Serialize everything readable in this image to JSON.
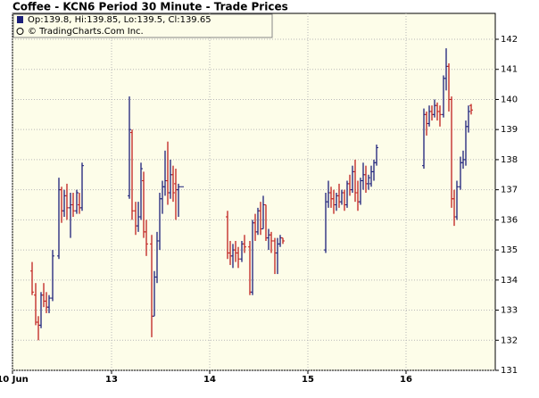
{
  "chart_data": {
    "type": "ohlc",
    "title": "Coffee - KCN6 Period 30 Minute - Trade Prices",
    "legend_text": "Op:139.8, Hi:139.85, Lo:139.5, Cl:139.65",
    "copyright": "© TradingCharts.Com Inc.",
    "up_color": "#1b1f7a",
    "down_color": "#c0201e",
    "x": [
      4.4,
      5.2,
      5.8,
      6.4,
      7.0,
      7.6,
      8.2,
      9.0,
      10.4,
      11.0,
      11.6,
      12.2,
      13.0,
      13.6,
      14.4,
      15.0,
      15.6,
      26.2,
      26.8,
      27.6,
      28.2,
      28.8,
      29.4,
      30.0,
      31.2,
      31.8,
      32.4,
      33.0,
      33.6,
      34.2,
      34.8,
      35.4,
      36.0,
      36.6,
      37.2,
      38.0,
      48.2,
      48.8,
      49.4,
      50.0,
      50.6,
      51.4,
      52.0,
      53.2,
      53.8,
      54.4,
      55.0,
      55.6,
      56.2,
      56.8,
      57.4,
      58.0,
      58.8,
      59.4,
      60.0,
      60.6,
      70.2,
      70.8,
      71.4,
      72.0,
      72.6,
      73.2,
      73.8,
      74.4,
      75.0,
      75.6,
      76.2,
      76.8,
      77.4,
      78.0,
      78.6,
      79.2,
      79.8,
      80.4,
      81.0,
      81.6,
      92.2,
      92.8,
      93.4,
      94.0,
      94.6,
      95.2,
      95.8,
      96.6,
      97.2,
      97.8,
      98.4,
      99.0,
      99.6,
      100.4,
      101.0,
      101.6,
      102.2,
      102.8
    ],
    "open": [
      134.3,
      133.5,
      132.6,
      132.5,
      133.5,
      133.3,
      133.1,
      133.4,
      134.8,
      137.0,
      136.3,
      136.8,
      136.4,
      136.5,
      136.3,
      136.5,
      136.4,
      136.8,
      138.9,
      136.3,
      135.8,
      136.1,
      137.3,
      135.6,
      135.2,
      132.8,
      134.1,
      135.3,
      136.7,
      137.1,
      137.3,
      136.9,
      137.5,
      137.2,
      137.0,
      137.1,
      136.1,
      134.9,
      134.8,
      135.0,
      134.9,
      134.7,
      135.2,
      135.1,
      133.6,
      135.9,
      135.6,
      136.3,
      135.7,
      136.5,
      135.4,
      135.5,
      135.3,
      134.9,
      135.2,
      135.4,
      135.0,
      136.6,
      136.9,
      136.7,
      136.5,
      136.8,
      136.6,
      136.9,
      136.5,
      137.2,
      137.0,
      137.6,
      136.9,
      136.6,
      137.3,
      137.5,
      137.2,
      137.2,
      137.6,
      137.9,
      137.8,
      139.5,
      139.2,
      139.6,
      139.5,
      139.8,
      139.6,
      139.5,
      140.7,
      141.1,
      140.0,
      136.7,
      136.1,
      137.1,
      137.9,
      138.0,
      139.1,
      139.8
    ],
    "high": [
      134.6,
      133.9,
      132.8,
      133.6,
      133.9,
      133.6,
      133.5,
      135.0,
      137.4,
      137.1,
      137.0,
      137.2,
      136.9,
      136.9,
      137.0,
      136.9,
      137.9,
      140.1,
      139.0,
      136.6,
      136.6,
      137.9,
      137.6,
      136.0,
      135.5,
      134.3,
      135.6,
      136.9,
      137.3,
      138.3,
      138.6,
      138.0,
      137.8,
      137.7,
      137.2,
      137.1,
      136.3,
      135.3,
      135.2,
      135.3,
      135.1,
      135.3,
      135.5,
      135.3,
      136.0,
      136.2,
      136.4,
      136.6,
      136.8,
      136.5,
      135.7,
      135.6,
      135.4,
      135.4,
      135.5,
      135.4,
      136.9,
      137.3,
      137.1,
      137.0,
      136.9,
      137.2,
      137.0,
      137.0,
      137.3,
      137.5,
      137.8,
      138.0,
      137.3,
      137.4,
      137.9,
      137.8,
      137.5,
      137.8,
      138.0,
      138.5,
      139.7,
      139.6,
      139.8,
      139.8,
      140.0,
      139.9,
      139.8,
      140.8,
      141.7,
      141.2,
      140.1,
      137.0,
      137.3,
      138.1,
      138.3,
      139.3,
      139.8,
      139.85
    ],
    "low": [
      133.5,
      132.5,
      132.0,
      132.4,
      133.1,
      132.9,
      132.9,
      133.3,
      134.7,
      135.9,
      136.1,
      136.0,
      135.4,
      136.1,
      136.2,
      136.2,
      136.3,
      136.7,
      136.0,
      135.5,
      135.6,
      136.0,
      135.4,
      134.8,
      132.1,
      132.8,
      133.9,
      135.0,
      136.2,
      136.8,
      136.5,
      136.7,
      136.6,
      136.0,
      136.1,
      137.1,
      134.7,
      134.5,
      134.4,
      134.6,
      134.4,
      134.6,
      134.9,
      133.5,
      133.5,
      135.3,
      135.5,
      135.5,
      135.7,
      135.3,
      135.0,
      134.9,
      134.2,
      134.2,
      135.1,
      135.2,
      134.9,
      136.4,
      136.4,
      136.2,
      136.3,
      136.4,
      136.5,
      136.3,
      136.4,
      136.8,
      136.9,
      136.6,
      136.3,
      136.5,
      137.0,
      136.9,
      137.0,
      137.1,
      137.3,
      137.8,
      137.7,
      138.8,
      139.1,
      139.3,
      139.4,
      139.3,
      139.1,
      139.4,
      140.3,
      139.6,
      136.4,
      135.8,
      136.0,
      137.0,
      137.7,
      137.8,
      138.9,
      139.5
    ],
    "close": [
      133.6,
      132.6,
      132.5,
      133.5,
      133.3,
      133.1,
      133.4,
      134.8,
      137.0,
      136.3,
      136.8,
      136.4,
      136.5,
      136.3,
      136.9,
      136.4,
      137.8,
      139.0,
      136.3,
      135.8,
      136.1,
      137.7,
      135.6,
      135.2,
      132.8,
      134.1,
      135.3,
      136.7,
      137.1,
      137.3,
      136.9,
      137.5,
      136.9,
      137.0,
      137.1,
      137.1,
      134.9,
      134.8,
      135.0,
      134.9,
      134.7,
      135.2,
      135.1,
      133.6,
      135.9,
      135.6,
      136.3,
      135.7,
      136.5,
      135.4,
      135.5,
      135.3,
      134.9,
      135.2,
      135.4,
      135.3,
      136.6,
      136.9,
      136.7,
      136.5,
      136.8,
      136.6,
      136.9,
      136.5,
      137.2,
      137.0,
      137.6,
      136.9,
      136.6,
      137.3,
      137.5,
      137.2,
      137.4,
      137.6,
      137.9,
      138.4,
      139.5,
      139.2,
      139.6,
      139.5,
      139.8,
      139.6,
      139.5,
      140.7,
      141.1,
      140.0,
      136.7,
      136.1,
      137.1,
      137.9,
      138.0,
      139.1,
      139.6,
      139.65
    ],
    "xlim": [
      0,
      108.2
    ],
    "xticks": [
      {
        "value": 0,
        "label": "10 Jun"
      },
      {
        "value": 22.2,
        "label": "13"
      },
      {
        "value": 44.2,
        "label": "14"
      },
      {
        "value": 66.2,
        "label": "15"
      },
      {
        "value": 88.2,
        "label": "16"
      }
    ],
    "ylim": [
      131,
      142.86
    ],
    "yticks": [
      131,
      132,
      133,
      134,
      135,
      136,
      137,
      138,
      139,
      140,
      141,
      142
    ],
    "grid": true
  }
}
